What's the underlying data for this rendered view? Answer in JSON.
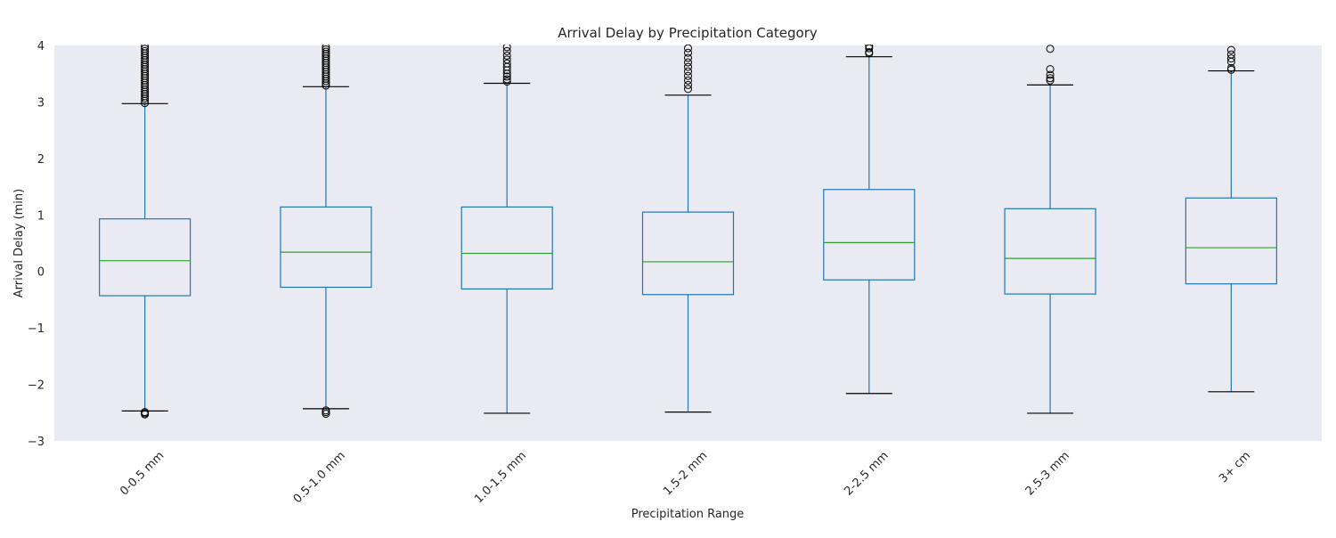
{
  "chart_data": {
    "type": "boxplot",
    "title": "Arrival Delay by Precipitation Category",
    "xlabel": "Precipitation Range",
    "ylabel": "Arrival Delay (min)",
    "ylim": [
      -3,
      4
    ],
    "yticks": [
      {
        "value": 4,
        "label": "4"
      },
      {
        "value": 3,
        "label": "3"
      },
      {
        "value": 2,
        "label": "2"
      },
      {
        "value": 1,
        "label": "1"
      },
      {
        "value": 0,
        "label": "0"
      },
      {
        "value": -1,
        "label": "−1"
      },
      {
        "value": -2,
        "label": "−2"
      },
      {
        "value": -3,
        "label": "−3"
      }
    ],
    "grid": false,
    "colors": {
      "plot_background": "#eaeaf2",
      "box": "#1f77b4",
      "median": "#2ca02c",
      "cap": "#000000",
      "flier": "#000000"
    },
    "boxes": [
      {
        "category": "0-0.5 mm",
        "whisker_low": -2.47,
        "q1": -0.43,
        "median": 0.19,
        "q3": 0.93,
        "whisker_high": 2.97,
        "fliers": [
          -2.49,
          -2.51,
          -2.53,
          2.98,
          3.02,
          3.06,
          3.1,
          3.14,
          3.18,
          3.22,
          3.26,
          3.3,
          3.34,
          3.38,
          3.42,
          3.46,
          3.5,
          3.54,
          3.58,
          3.62,
          3.66,
          3.7,
          3.74,
          3.78,
          3.82,
          3.86,
          3.9,
          3.94,
          3.98
        ]
      },
      {
        "category": "0.5-1.0 mm",
        "whisker_low": -2.43,
        "q1": -0.28,
        "median": 0.34,
        "q3": 1.14,
        "whisker_high": 3.27,
        "fliers": [
          -2.46,
          -2.49,
          -2.52,
          3.29,
          3.33,
          3.37,
          3.41,
          3.45,
          3.49,
          3.53,
          3.57,
          3.61,
          3.65,
          3.69,
          3.73,
          3.77,
          3.81,
          3.85,
          3.89,
          3.93,
          3.97
        ]
      },
      {
        "category": "1.0-1.5 mm",
        "whisker_low": -2.51,
        "q1": -0.31,
        "median": 0.32,
        "q3": 1.14,
        "whisker_high": 3.33,
        "fliers": [
          3.36,
          3.4,
          3.45,
          3.5,
          3.56,
          3.62,
          3.68,
          3.75,
          3.82,
          3.9,
          3.97
        ]
      },
      {
        "category": "1.5-2 mm",
        "whisker_low": -2.49,
        "q1": -0.41,
        "median": 0.17,
        "q3": 1.05,
        "whisker_high": 3.12,
        "fliers": [
          3.23,
          3.3,
          3.38,
          3.46,
          3.54,
          3.62,
          3.7,
          3.78,
          3.87,
          3.95
        ]
      },
      {
        "category": "2-2.5 mm",
        "whisker_low": -2.16,
        "q1": -0.15,
        "median": 0.51,
        "q3": 1.45,
        "whisker_high": 3.8,
        "fliers": [
          3.86,
          3.88,
          3.95,
          3.99
        ]
      },
      {
        "category": "2.5-3 mm",
        "whisker_low": -2.51,
        "q1": -0.4,
        "median": 0.23,
        "q3": 1.11,
        "whisker_high": 3.3,
        "fliers": [
          3.38,
          3.42,
          3.48,
          3.58,
          3.94
        ]
      },
      {
        "category": "3+ cm",
        "whisker_low": -2.13,
        "q1": -0.22,
        "median": 0.42,
        "q3": 1.3,
        "whisker_high": 3.55,
        "fliers": [
          3.57,
          3.6,
          3.71,
          3.77,
          3.84,
          3.92
        ]
      }
    ]
  }
}
